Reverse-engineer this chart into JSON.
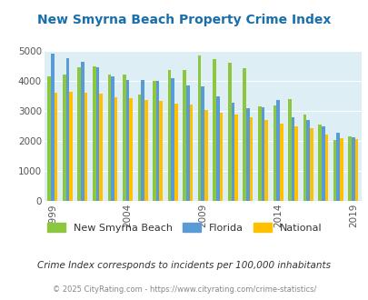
{
  "title": "New Smyrna Beach Property Crime Index",
  "years": [
    1999,
    2000,
    2001,
    2002,
    2003,
    2004,
    2005,
    2006,
    2007,
    2008,
    2009,
    2010,
    2011,
    2012,
    2013,
    2014,
    2015,
    2016,
    2017,
    2018,
    2019
  ],
  "nsb": [
    4150,
    4200,
    4450,
    4480,
    4200,
    4200,
    3550,
    4000,
    4380,
    4380,
    4850,
    4720,
    4600,
    4420,
    3150,
    3180,
    3400,
    2870,
    2550,
    2020,
    2150
  ],
  "florida": [
    4900,
    4750,
    4650,
    4450,
    4150,
    4020,
    4020,
    4000,
    4100,
    3850,
    3820,
    3480,
    3280,
    3080,
    3110,
    3380,
    2780,
    2700,
    2480,
    2280,
    2130
  ],
  "national": [
    3600,
    3650,
    3620,
    3580,
    3450,
    3430,
    3380,
    3350,
    3260,
    3200,
    3020,
    2940,
    2890,
    2780,
    2700,
    2590,
    2480,
    2430,
    2200,
    2100,
    2070
  ],
  "color_nsb": "#8dc63f",
  "color_florida": "#5b9bd5",
  "color_national": "#ffc000",
  "background_color": "#ddeef5",
  "title_color": "#1a6faa",
  "subtitle": "Crime Index corresponds to incidents per 100,000 inhabitants",
  "footer": "© 2025 CityRating.com - https://www.cityrating.com/crime-statistics/",
  "ylim": [
    0,
    5000
  ],
  "yticks": [
    0,
    1000,
    2000,
    3000,
    4000,
    5000
  ],
  "xtick_years": [
    1999,
    2004,
    2009,
    2014,
    2019
  ],
  "bar_width": 0.22
}
